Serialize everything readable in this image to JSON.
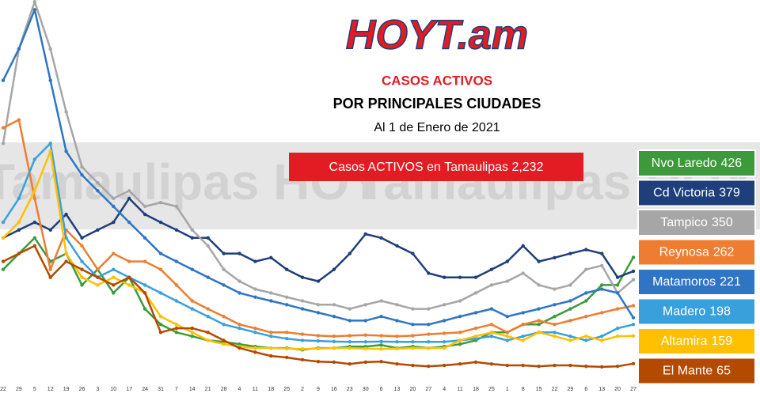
{
  "logo": "HOYT.am",
  "watermark": "Tamaulipas HOY",
  "chart_data": {
    "type": "line",
    "title": "CASOS ACTIVOS",
    "subtitle": "POR PRINCIPALES CIUDADES",
    "date_label": "Al 1 de Enero de 2021",
    "banner": "Casos ACTIVOS en Tamaulipas  2,232",
    "categories": [
      "22",
      "29",
      "5",
      "12",
      "19",
      "26",
      "3",
      "10",
      "17",
      "24",
      "31",
      "7",
      "14",
      "21",
      "28",
      "4",
      "11",
      "18",
      "25",
      "2",
      "9",
      "16",
      "23",
      "30",
      "6",
      "13",
      "20",
      "27",
      "4",
      "11",
      "18",
      "25",
      "1",
      "8",
      "15",
      "22",
      "29",
      "6",
      "13",
      "20",
      "27"
    ],
    "ylim": [
      0,
      1300
    ],
    "series": [
      {
        "name": "Nvo Laredo",
        "color": "#3c9a3c",
        "values": [
          385,
          439,
          492,
          412,
          439,
          332,
          385,
          305,
          358,
          251,
          198,
          171,
          158,
          144,
          139,
          131,
          123,
          118,
          118,
          112,
          118,
          118,
          123,
          123,
          128,
          118,
          123,
          118,
          123,
          131,
          144,
          171,
          171,
          198,
          198,
          225,
          251,
          278,
          332,
          332,
          426
        ]
      },
      {
        "name": "Cd Victoria",
        "color": "#1f3f7a",
        "values": [
          492,
          519,
          545,
          519,
          572,
          492,
          519,
          545,
          626,
          572,
          545,
          519,
          492,
          492,
          439,
          439,
          412,
          425,
          385,
          358,
          345,
          385,
          439,
          505,
          492,
          465,
          439,
          372,
          358,
          358,
          358,
          385,
          412,
          465,
          412,
          425,
          439,
          452,
          439,
          358,
          379
        ]
      },
      {
        "name": "Tampico",
        "color": "#a6a6a6",
        "values": [
          813,
          1134,
          1294,
          1134,
          920,
          733,
          679,
          626,
          652,
          599,
          612,
          599,
          519,
          465,
          385,
          345,
          318,
          305,
          291,
          278,
          265,
          265,
          251,
          265,
          278,
          265,
          251,
          251,
          265,
          278,
          305,
          332,
          345,
          372,
          332,
          318,
          332,
          385,
          398,
          305,
          350
        ]
      },
      {
        "name": "Reynosa",
        "color": "#ed7d31",
        "values": [
          866,
          893,
          626,
          385,
          519,
          465,
          385,
          439,
          412,
          412,
          385,
          332,
          278,
          251,
          225,
          198,
          185,
          171,
          171,
          165,
          160,
          158,
          160,
          162,
          160,
          158,
          160,
          165,
          168,
          171,
          185,
          198,
          171,
          198,
          211,
          198,
          211,
          225,
          238,
          251,
          262
        ]
      },
      {
        "name": "Matamoros",
        "color": "#2e75c6",
        "values": [
          1027,
          1134,
          1267,
          1027,
          786,
          706,
          652,
          599,
          545,
          492,
          439,
          412,
          385,
          358,
          332,
          305,
          291,
          278,
          265,
          251,
          238,
          225,
          211,
          211,
          225,
          211,
          198,
          198,
          211,
          225,
          238,
          251,
          225,
          238,
          251,
          265,
          278,
          305,
          318,
          305,
          221
        ]
      },
      {
        "name": "Madero",
        "color": "#3aa0dc",
        "values": [
          545,
          626,
          759,
          813,
          492,
          412,
          358,
          385,
          358,
          332,
          305,
          278,
          251,
          225,
          198,
          185,
          171,
          158,
          150,
          144,
          142,
          140,
          139,
          139,
          140,
          139,
          139,
          139,
          139,
          144,
          150,
          158,
          144,
          158,
          171,
          171,
          158,
          144,
          158,
          185,
          198
        ]
      },
      {
        "name": "Altamira",
        "color": "#ffc000",
        "values": [
          492,
          545,
          652,
          786,
          439,
          358,
          332,
          358,
          332,
          305,
          225,
          198,
          171,
          144,
          131,
          123,
          118,
          118,
          116,
          115,
          116,
          118,
          118,
          116,
          115,
          116,
          118,
          118,
          118,
          144,
          158,
          171,
          158,
          144,
          171,
          158,
          144,
          158,
          144,
          158,
          159
        ]
      },
      {
        "name": "El Mante",
        "color": "#b34a00",
        "values": [
          412,
          439,
          465,
          358,
          412,
          385,
          358,
          332,
          358,
          305,
          171,
          185,
          185,
          171,
          144,
          118,
          104,
          91,
          86,
          78,
          72,
          70,
          64,
          70,
          72,
          64,
          59,
          56,
          59,
          64,
          70,
          64,
          59,
          59,
          56,
          59,
          59,
          56,
          54,
          56,
          65
        ]
      }
    ]
  }
}
